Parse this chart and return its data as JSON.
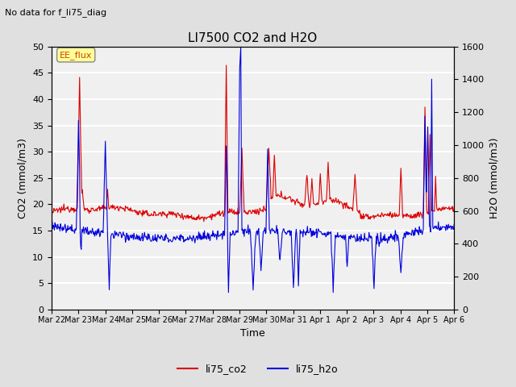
{
  "title": "LI7500 CO2 and H2O",
  "subtitle": "No data for f_li75_diag",
  "xlabel": "Time",
  "ylabel_left": "CO2 (mmol/m3)",
  "ylabel_right": "H2O (mmol/m3)",
  "ylim_left": [
    0,
    50
  ],
  "ylim_right": [
    0,
    1600
  ],
  "legend_label_co2": "li75_co2",
  "legend_label_h2o": "li75_h2o",
  "color_co2": "#dd0000",
  "color_h2o": "#0000dd",
  "legend_box_facecolor": "#ffff99",
  "annotation_label": "EE_flux",
  "background_color": "#e0e0e0",
  "plot_bg_color": "#f0f0f0",
  "grid_color": "#ffffff",
  "x_tick_labels": [
    "Mar 22",
    "Mar 23",
    "Mar 24",
    "Mar 25",
    "Mar 26",
    "Mar 27",
    "Mar 28",
    "Mar 29",
    "Mar 30",
    "Mar 31",
    "Apr 1",
    "Apr 2",
    "Apr 3",
    "Apr 4",
    "Apr 5",
    "Apr 6"
  ],
  "n_days": 15,
  "figsize": [
    6.4,
    4.8
  ],
  "dpi": 100
}
